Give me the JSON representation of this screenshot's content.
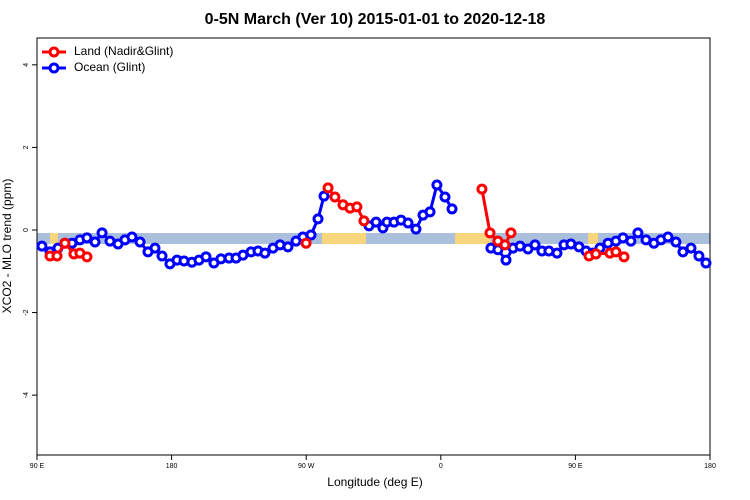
{
  "chart_data": {
    "type": "line",
    "title": "0-5N March (Ver 10)   2015-01-01 to 2020-12-18",
    "xlabel": "Longitude (deg E)",
    "ylabel": "XCO2 - MLO trend (ppm)",
    "xlim": [
      90,
      540
    ],
    "ylim": [
      -5.45,
      4.65
    ],
    "xticks": [
      {
        "value": 90,
        "label": "90 E"
      },
      {
        "value": 180,
        "label": "180"
      },
      {
        "value": 270,
        "label": "90 W"
      },
      {
        "value": 360,
        "label": "0"
      },
      {
        "value": 450,
        "label": "90 E"
      },
      {
        "value": 540,
        "label": "180"
      }
    ],
    "yticks": [
      -4,
      -2,
      0,
      2,
      4
    ],
    "legend": "top-left",
    "series": [
      {
        "name": "Ocean (Glint)",
        "color": "#0000ff",
        "x": [
          93.3,
          98.7,
          104.0,
          108.7,
          113.4,
          118.7,
          123.4,
          128.8,
          133.5,
          138.8,
          144.2,
          148.8,
          153.5,
          158.9,
          164.2,
          168.9,
          173.6,
          178.9,
          183.6,
          188.3,
          193.6,
          198.3,
          203.0,
          208.3,
          213.0,
          218.4,
          223.1,
          227.7,
          233.1,
          237.8,
          242.4,
          247.8,
          252.5,
          257.8,
          263.2,
          267.8,
          273.2,
          277.9,
          281.9,
          null,
          312.0,
          316.7,
          321.3,
          324.0,
          328.7,
          333.4,
          338.1,
          343.4,
          348.1,
          352.8,
          357.4,
          362.8,
          367.5,
          null,
          393.5,
          398.2,
          403.6,
          408.3,
          413.0,
          418.3,
          423.0,
          427.6,
          432.3,
          437.7,
          442.4,
          447.0,
          452.4,
          457.1,
          461.7,
          466.4,
          471.8,
          477.1,
          481.8,
          487.1,
          491.8,
          497.2,
          502.5,
          507.2,
          511.9,
          517.2,
          521.9,
          527.3,
          532.6,
          537.3
        ],
        "values": [
          -0.39,
          -0.53,
          -0.44,
          -0.32,
          -0.32,
          -0.24,
          -0.19,
          -0.29,
          -0.07,
          -0.27,
          -0.34,
          -0.24,
          -0.17,
          -0.29,
          -0.53,
          -0.44,
          -0.63,
          -0.82,
          -0.73,
          -0.75,
          -0.78,
          -0.73,
          -0.65,
          -0.8,
          -0.7,
          -0.68,
          -0.68,
          -0.61,
          -0.53,
          -0.51,
          -0.56,
          -0.44,
          -0.36,
          -0.41,
          -0.27,
          -0.17,
          -0.12,
          0.27,
          0.82,
          null,
          0.1,
          0.19,
          0.05,
          0.19,
          0.19,
          0.24,
          0.17,
          0.02,
          0.36,
          0.44,
          1.09,
          0.8,
          0.51,
          null,
          -0.44,
          -0.48,
          -0.73,
          -0.44,
          -0.39,
          -0.46,
          -0.36,
          -0.51,
          -0.51,
          -0.56,
          -0.36,
          -0.34,
          -0.41,
          -0.51,
          -0.56,
          -0.44,
          -0.32,
          -0.27,
          -0.19,
          -0.27,
          -0.07,
          -0.24,
          -0.32,
          -0.24,
          -0.17,
          -0.29,
          -0.53,
          -0.44,
          -0.63,
          -0.8
        ]
      },
      {
        "name": "Land (Nadir&Glint)",
        "color": "#ff0000",
        "x": [
          98.7,
          103.4,
          108.7,
          114.7,
          118.7,
          123.4,
          null,
          269.9,
          null,
          284.6,
          289.2,
          294.6,
          299.3,
          303.9,
          308.6,
          null,
          387.5,
          392.9,
          398.2,
          402.9,
          406.9,
          null,
          459.1,
          463.7,
          473.1,
          477.1,
          482.5
        ],
        "values": [
          -0.63,
          -0.63,
          -0.32,
          -0.58,
          -0.56,
          -0.65,
          null,
          -0.32,
          null,
          1.02,
          0.8,
          0.61,
          0.53,
          0.56,
          0.22,
          null,
          0.99,
          -0.07,
          -0.27,
          -0.36,
          -0.07,
          null,
          -0.63,
          -0.58,
          -0.56,
          -0.53,
          -0.65
        ]
      }
    ]
  }
}
